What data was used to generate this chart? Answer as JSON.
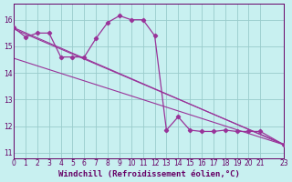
{
  "bg_color": "#c8f0f0",
  "line_color": "#993399",
  "grid_color": "#99cccc",
  "xmin": 0,
  "xmax": 23,
  "ymin": 10.8,
  "ymax": 16.6,
  "yticks": [
    11,
    12,
    13,
    14,
    15,
    16
  ],
  "xlabel": "Windchill (Refroidissement éolien,°C)",
  "tick_fontsize": 5.5,
  "xlabel_fontsize": 6.5,
  "series": [
    [
      0,
      15.7
    ],
    [
      1,
      15.35
    ],
    [
      2,
      15.5
    ],
    [
      3,
      15.5
    ],
    [
      4,
      14.6
    ],
    [
      5,
      14.6
    ],
    [
      6,
      14.6
    ],
    [
      7,
      15.3
    ],
    [
      8,
      15.9
    ],
    [
      9,
      16.15
    ],
    [
      10,
      16.0
    ],
    [
      11,
      16.0
    ],
    [
      12,
      15.4
    ],
    [
      13,
      11.85
    ],
    [
      14,
      12.35
    ],
    [
      15,
      11.85
    ],
    [
      16,
      11.8
    ],
    [
      17,
      11.8
    ],
    [
      18,
      11.85
    ],
    [
      19,
      11.8
    ],
    [
      20,
      11.8
    ],
    [
      21,
      11.8
    ],
    [
      23,
      11.3
    ]
  ],
  "trend1_x": [
    0,
    23
  ],
  "trend1_y": [
    15.7,
    11.3
  ],
  "trend2_x": [
    0,
    23
  ],
  "trend2_y": [
    14.55,
    11.3
  ],
  "trend3_x": [
    0,
    23
  ],
  "trend3_y": [
    15.65,
    11.32
  ]
}
